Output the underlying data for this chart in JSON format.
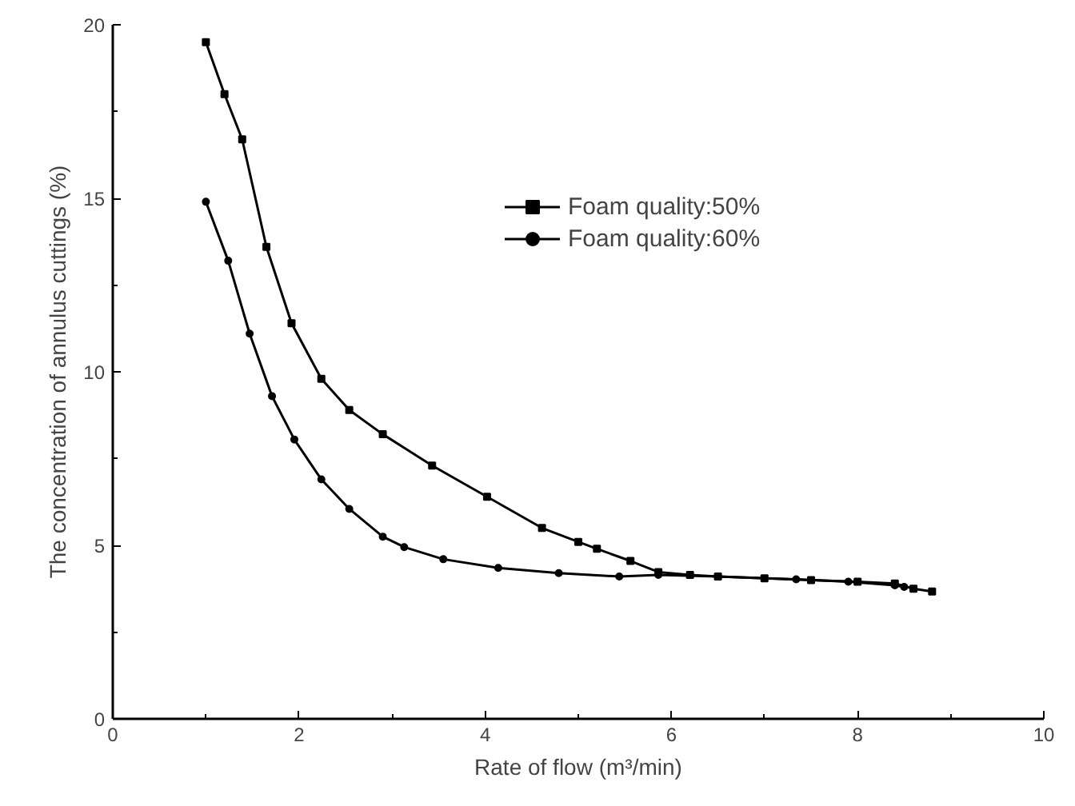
{
  "chart_data": {
    "type": "line",
    "xlabel": "Rate of flow (m³/min)",
    "ylabel": "The concentration of annulus cuttings (%)",
    "xlim": [
      0,
      10
    ],
    "xticks": [
      0,
      2,
      4,
      6,
      8,
      10
    ],
    "ylim": [
      0,
      20
    ],
    "yticks": [
      0,
      5,
      10,
      15,
      20
    ],
    "grid": false,
    "legend": "top right",
    "line_style": "solid",
    "series": [
      {
        "name": "Foam quality:50%",
        "color": "#000000",
        "marker": "square",
        "x": [
          1.0,
          1.2,
          1.39,
          1.65,
          1.92,
          2.24,
          2.54,
          2.9,
          3.43,
          4.02,
          4.61,
          5.0,
          5.2,
          5.56,
          5.86,
          6.2,
          6.5,
          7.0,
          7.5,
          8.0,
          8.4,
          8.6,
          8.8
        ],
        "values": [
          19.5,
          18.0,
          16.7,
          13.6,
          11.4,
          9.8,
          8.9,
          8.2,
          7.3,
          6.4,
          5.5,
          5.1,
          4.9,
          4.55,
          4.23,
          4.15,
          4.1,
          4.05,
          4.0,
          3.95,
          3.9,
          3.75,
          3.67
        ]
      },
      {
        "name": "Foam quality:60%",
        "color": "#000000",
        "marker": "circle",
        "x": [
          1.0,
          1.24,
          1.47,
          1.71,
          1.95,
          2.24,
          2.54,
          2.9,
          3.13,
          3.55,
          4.14,
          4.79,
          5.44,
          5.86,
          6.5,
          7.34,
          7.9,
          8.4,
          8.5
        ],
        "values": [
          14.9,
          13.2,
          11.1,
          9.3,
          8.05,
          6.9,
          6.05,
          5.25,
          4.95,
          4.6,
          4.35,
          4.2,
          4.1,
          4.15,
          4.1,
          4.02,
          3.95,
          3.85,
          3.8
        ]
      }
    ]
  }
}
